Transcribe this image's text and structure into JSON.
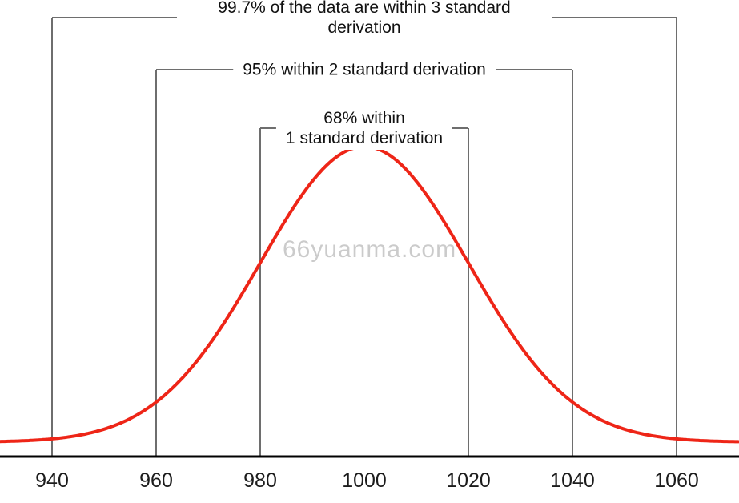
{
  "watermark": "66yuanma.com",
  "chart_data": {
    "type": "line",
    "subtype": "normal-distribution-bell-curve",
    "title": "",
    "xlabel": "",
    "ylabel": "",
    "mean": 1000,
    "std": 20,
    "x_range": [
      930,
      1072
    ],
    "x_ticks": [
      "940",
      "960",
      "980",
      "1000",
      "1020",
      "1040",
      "1060"
    ],
    "x_tick_values": [
      940,
      960,
      980,
      1000,
      1020,
      1040,
      1060
    ],
    "grid": "off",
    "legend": "none",
    "curve_color": "#ee2517",
    "boundary_line_color": "#6e6e6e",
    "axis_color": "#000000",
    "annotations": [
      {
        "sigma": 3,
        "from": 940,
        "to": 1060,
        "label": "99.7% of the data are within 3 standard derivation"
      },
      {
        "sigma": 2,
        "from": 960,
        "to": 1040,
        "label": "95% within 2 standard derivation"
      },
      {
        "sigma": 1,
        "from": 980,
        "to": 1020,
        "label": "68% within\n1 standard derivation"
      }
    ]
  }
}
